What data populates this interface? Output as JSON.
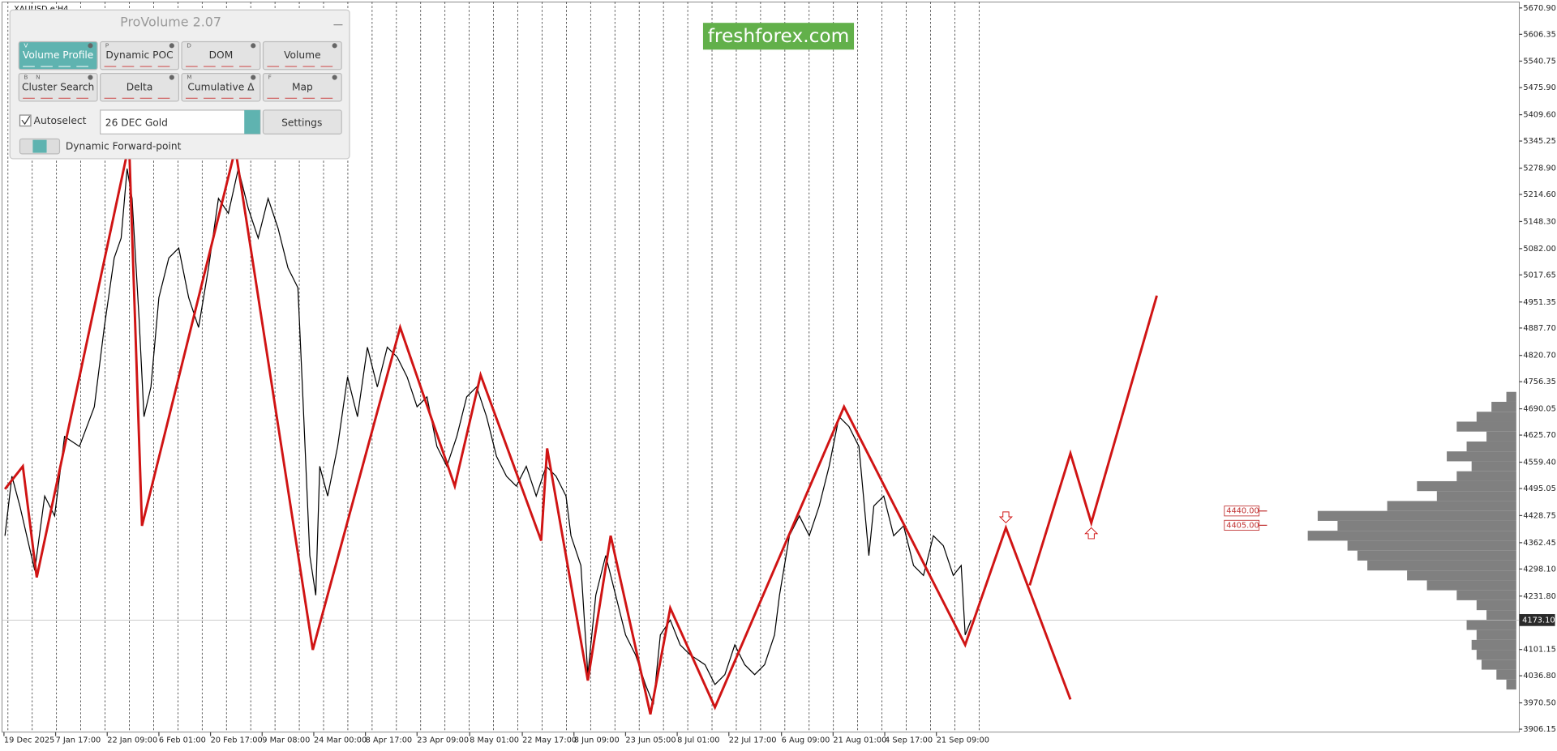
{
  "chart_data": {
    "type": "line",
    "title": "XAUUSD.e,H4",
    "xlim": [
      0,
      1530
    ],
    "ylim": [
      3898.9,
      5683.0
    ],
    "xticks": [
      {
        "value": 4,
        "label": "19 Dec 2025"
      },
      {
        "value": 56,
        "label": "7 Jan 17:00"
      },
      {
        "value": 108,
        "label": "22 Jan 09:00"
      },
      {
        "value": 160,
        "label": "6 Feb 01:00"
      },
      {
        "value": 212,
        "label": "20 Feb 17:00"
      },
      {
        "value": 264,
        "label": "9 Mar 08:00"
      },
      {
        "value": 316,
        "label": "24 Mar 00:00"
      },
      {
        "value": 368,
        "label": "8 Apr 17:00"
      },
      {
        "value": 420,
        "label": "23 Apr 09:00"
      },
      {
        "value": 473,
        "label": "8 May 01:00"
      },
      {
        "value": 526,
        "label": "22 May 17:00"
      },
      {
        "value": 578,
        "label": "8 Jun 09:00"
      },
      {
        "value": 630,
        "label": "23 Jun 05:00"
      },
      {
        "value": 682,
        "label": "8 Jul 01:00"
      },
      {
        "value": 734,
        "label": "22 Jul 17:00"
      },
      {
        "value": 787,
        "label": "6 Aug 09:00"
      },
      {
        "value": 839,
        "label": "21 Aug 01:00"
      },
      {
        "value": 891,
        "label": "4 Sep 17:00"
      },
      {
        "value": 943,
        "label": "21 Sep 09:00"
      }
    ],
    "yticks": [
      {
        "value": 5670.9,
        "label": "5670.90"
      },
      {
        "value": 5606.35,
        "label": "5606.35"
      },
      {
        "value": 5540.75,
        "label": "5540.75"
      },
      {
        "value": 5475.9,
        "label": "5475.90"
      },
      {
        "value": 5409.6,
        "label": "5409.60"
      },
      {
        "value": 5345.25,
        "label": "5345.25"
      },
      {
        "value": 5278.9,
        "label": "5278.90"
      },
      {
        "value": 5214.6,
        "label": "5214.60"
      },
      {
        "value": 5148.3,
        "label": "5148.30"
      },
      {
        "value": 5082.0,
        "label": "5082.00"
      },
      {
        "value": 5017.65,
        "label": "5017.65"
      },
      {
        "value": 4951.35,
        "label": "4951.35"
      },
      {
        "value": 4887.7,
        "label": "4887.70"
      },
      {
        "value": 4820.7,
        "label": "4820.70"
      },
      {
        "value": 4756.35,
        "label": "4756.35"
      },
      {
        "value": 4690.05,
        "label": "4690.05"
      },
      {
        "value": 4625.7,
        "label": "4625.70"
      },
      {
        "value": 4559.4,
        "label": "4559.40"
      },
      {
        "value": 4495.05,
        "label": "4495.05"
      },
      {
        "value": 4428.75,
        "label": "4428.75"
      },
      {
        "value": 4362.45,
        "label": "4362.45"
      },
      {
        "value": 4298.1,
        "label": "4298.10"
      },
      {
        "value": 4231.8,
        "label": "4231.80"
      },
      {
        "value": 4101.15,
        "label": "4101.15"
      },
      {
        "value": 4036.8,
        "label": "4036.80"
      },
      {
        "value": 3970.5,
        "label": "3970.50"
      },
      {
        "value": 3906.15,
        "label": "3906.15"
      }
    ],
    "series": [
      {
        "color": "#000000",
        "x": [
          5,
          12,
          20,
          35,
          45,
          55,
          65,
          80,
          95,
          105,
          115,
          122,
          128,
          133,
          140,
          145,
          152,
          160,
          170,
          180,
          190,
          200,
          210,
          220,
          230,
          240,
          250,
          260,
          270,
          280,
          290,
          300,
          305,
          312,
          318,
          322,
          330,
          340,
          350,
          360,
          370,
          380,
          390,
          400,
          410,
          420,
          430,
          440,
          450,
          460,
          470,
          480,
          490,
          500,
          510,
          520,
          530,
          540,
          550,
          560,
          570,
          575,
          585,
          592,
          600,
          610,
          620,
          630,
          640,
          650,
          658,
          665,
          675,
          685,
          695,
          710,
          720,
          730,
          740,
          750,
          760,
          770,
          780,
          785,
          795,
          805,
          815,
          825,
          835,
          845,
          855,
          865,
          875,
          880,
          890,
          900,
          910,
          920,
          930,
          940,
          950,
          960,
          968,
          972,
          978
        ],
        "values": [
          4379.5,
          4525.1,
          4452.3,
          4294.5,
          4476.6,
          4428.0,
          4622.2,
          4597.9,
          4695.0,
          4889.2,
          5059.1,
          5107.7,
          5277.6,
          5204.8,
          4913.5,
          4670.7,
          4743.6,
          4962.1,
          5059.1,
          5083.4,
          4962.1,
          4889.2,
          5034.9,
          5204.8,
          5168.4,
          5277.6,
          5180.5,
          5107.7,
          5204.8,
          5132.0,
          5034.9,
          4986.3,
          4719.3,
          4330.9,
          4233.8,
          4549.4,
          4476.6,
          4597.9,
          4767.9,
          4670.7,
          4840.7,
          4743.6,
          4840.7,
          4816.4,
          4767.9,
          4695.0,
          4719.3,
          4597.9,
          4549.4,
          4622.2,
          4719.3,
          4743.6,
          4670.7,
          4573.7,
          4525.1,
          4500.8,
          4549.4,
          4476.6,
          4549.4,
          4525.1,
          4476.6,
          4379.5,
          4306.6,
          4039.6,
          4233.8,
          4330.9,
          4233.8,
          4136.7,
          4088.2,
          4015.3,
          3966.8,
          4136.7,
          4173.1,
          4112.4,
          4088.2,
          4063.9,
          4015.3,
          4039.6,
          4112.4,
          4063.9,
          4039.6,
          4063.9,
          4136.7,
          4233.8,
          4379.5,
          4428.0,
          4379.5,
          4452.3,
          4549.4,
          4670.7,
          4646.5,
          4597.9,
          4330.9,
          4452.3,
          4476.6,
          4379.5,
          4403.7,
          4306.6,
          4282.3,
          4379.5,
          4355.2,
          4282.3,
          4306.6,
          4136.7,
          4173.1
        ]
      },
      {
        "color": "#d01414",
        "x": [
          5,
          23,
          37,
          130,
          143,
          237,
          315,
          403,
          458,
          484,
          545,
          551,
          592,
          615,
          655,
          675,
          720,
          850,
          972,
          1013,
          1078
        ],
        "values": [
          4493.6,
          4549.4,
          4277.5,
          5338.3,
          4403.7,
          5326.2,
          4100.3,
          4889.2,
          4500.8,
          4772.7,
          4367.3,
          4593.1,
          4025.1,
          4379.5,
          3942.5,
          4202.3,
          3959.5,
          4695.0,
          4112.4,
          4398.9,
          3978.9
        ]
      },
      {
        "color": "#d01414",
        "x": [
          1037,
          1078,
          1099,
          1165
        ],
        "values": [
          4258.1,
          4580.9,
          4411.0,
          4966.9
        ]
      }
    ],
    "current_price": {
      "value": 4173.1,
      "label": "4173.10"
    },
    "levels": [
      {
        "value": 4440,
        "label": "4440.00"
      },
      {
        "value": 4405,
        "label": "4405.00"
      }
    ],
    "volume_profile": {
      "color": "#808080",
      "levels": [
        4719.3,
        4695.0,
        4670.7,
        4646.5,
        4622.2,
        4597.9,
        4573.7,
        4549.4,
        4525.1,
        4500.8,
        4476.6,
        4452.3,
        4428.0,
        4403.7,
        4379.5,
        4355.2,
        4330.9,
        4306.6,
        4282.3,
        4258.1,
        4233.8,
        4209.5,
        4185.3,
        4161.0,
        4136.7,
        4112.4,
        4088.2,
        4063.9,
        4039.6,
        4015.3
      ],
      "values": [
        10,
        25,
        40,
        60,
        30,
        50,
        70,
        45,
        60,
        100,
        80,
        130,
        200,
        180,
        210,
        170,
        160,
        150,
        110,
        90,
        60,
        40,
        30,
        50,
        40,
        45,
        40,
        35,
        20,
        10
      ]
    }
  },
  "watermark": "freshforex.com",
  "panel": {
    "title": "ProVolume 2.07",
    "buttons": [
      {
        "label": "Volume Profile",
        "hotkeys": [
          "V"
        ]
      },
      {
        "label": "Dynamic POC",
        "hotkeys": [
          "P"
        ]
      },
      {
        "label": "DOM",
        "hotkeys": [
          "D"
        ]
      },
      {
        "label": "Volume"
      },
      {
        "label": "Cluster Search",
        "hotkeys": [
          "B",
          "N"
        ]
      },
      {
        "label": "Delta"
      },
      {
        "label": "Cumulative Δ",
        "hotkeys": [
          "M"
        ]
      },
      {
        "label": "Map",
        "hotkeys": [
          "F"
        ]
      }
    ],
    "autoselect": "Autoselect",
    "instrument": "26 DEC Gold",
    "settings": "Settings",
    "forward_point": "Dynamic Forward-point"
  }
}
